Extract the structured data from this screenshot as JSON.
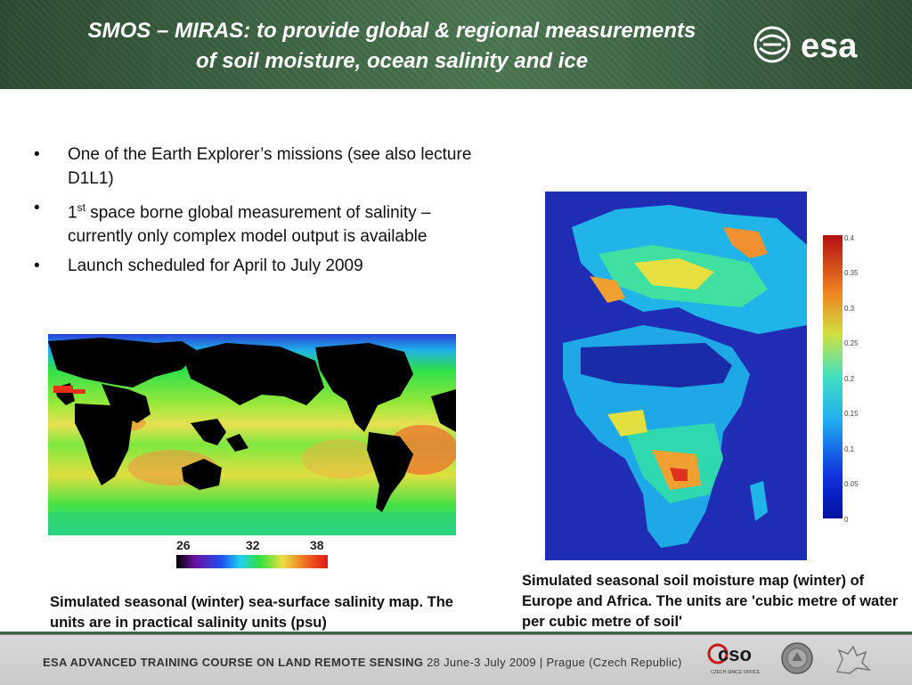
{
  "header": {
    "title_line1": "SMOS – MIRAS: to provide global & regional measurements",
    "title_line2": "of soil  moisture, ocean salinity and ice",
    "logo_text": "esa"
  },
  "bullets": [
    {
      "text": "One of the Earth Explorer’s missions (see also lecture D1L1)"
    },
    {
      "prefix": "1",
      "sup": "st",
      "text": " space borne global measurement of salinity – currently only complex model output is available"
    },
    {
      "text": "Launch scheduled for April to July 2009"
    }
  ],
  "salinity": {
    "scale_labels": [
      "26",
      "32",
      "38 psu"
    ],
    "caption": "Simulated seasonal (winter) sea-surface salinity map. The units are in practical salinity units (psu)"
  },
  "moisture": {
    "ticks": [
      "0.4",
      "0.35",
      "0.3",
      "0.25",
      "0.2",
      "0.15",
      "0.1",
      "0.05",
      "0"
    ],
    "caption": "Simulated seasonal soil moisture map (winter) of Europe and Africa. The units are 'cubic metre of water per cubic metre of soil'"
  },
  "footer": {
    "course": "ESA ADVANCED TRAINING COURSE ON LAND REMOTE SENSING",
    "event": "28 June-3 July 2009 | Prague (Czech Republic)",
    "cso_logo": "cso",
    "cso_subtitle": "CZECH SPACE OFFICE"
  },
  "colors": {
    "header_green": "#3d6443",
    "land_black": "#000000",
    "ocean_green": "#33e03a",
    "salinity_high": "#f05a1e",
    "moisture_low": "#1d2fb0",
    "moisture_high": "#d02020"
  },
  "icons": [
    "esa-logo-icon",
    "cso-logo-icon",
    "seal-icon",
    "lion-emblem-icon"
  ]
}
